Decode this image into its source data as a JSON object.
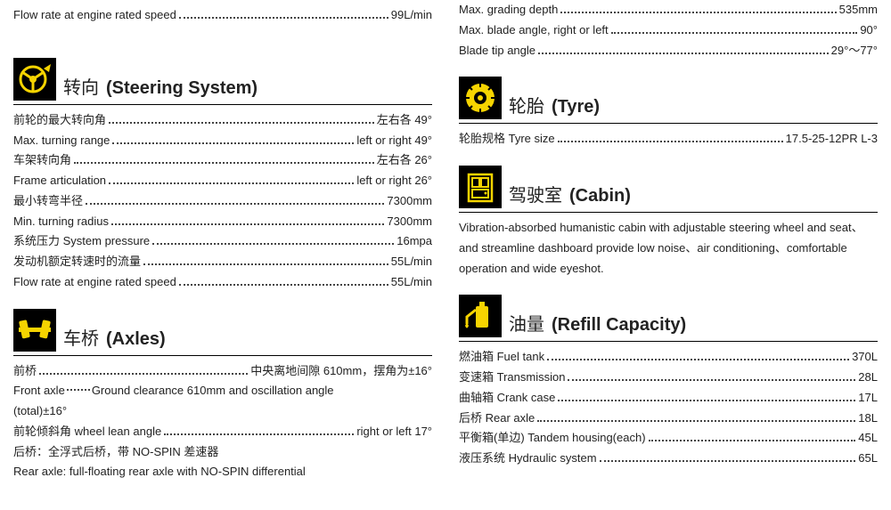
{
  "colors": {
    "icon_bg": "#000000",
    "icon_fg": "#f6d400",
    "text": "#222222",
    "rule": "#000000"
  },
  "left": {
    "top_row": {
      "label": "Flow rate at engine rated speed",
      "value": "99L/min"
    },
    "steering": {
      "title_cn": "转向",
      "title_en": "(Steering System)",
      "rows": [
        {
          "label": "前轮的最大转向角",
          "value": "左右各  49°"
        },
        {
          "label": "Max. turning range",
          "value": "left or right 49°"
        },
        {
          "label": "车架转向角",
          "value": "左右各 26°"
        },
        {
          "label": "Frame articulation",
          "value": "left or right 26°"
        },
        {
          "label": "最小转弯半径",
          "value": "7300mm"
        },
        {
          "label": "Min. turning radius",
          "value": "7300mm"
        },
        {
          "label": "系统压力  System pressure",
          "value": "16mpa"
        },
        {
          "label": "发动机额定转速时的流量",
          "value": "55L/min"
        },
        {
          "label": "Flow rate at engine rated speed",
          "value": "55L/min"
        }
      ]
    },
    "axles": {
      "title_cn": "车桥",
      "title_en": "(Axles)",
      "rows": [
        {
          "label": "前桥",
          "value": "中央离地间隙 610mm，摆角为±16°"
        }
      ],
      "front_axle_line": {
        "a": "Front axle",
        "b": "Ground clearance 610mm and oscillation angle"
      },
      "front_axle_line2": "(total)±16°",
      "lean_row": {
        "label": "前轮倾斜角  wheel lean angle",
        "value": "right or left 17°"
      },
      "rear_cn": "后桥：全浮式后桥，带 NO-SPIN 差速器",
      "rear_en": "Rear axle: full-floating rear axle with NO-SPIN differential"
    }
  },
  "right": {
    "top_rows": [
      {
        "label": "Max. grading depth",
        "value": "535mm"
      },
      {
        "label": "Max. blade angle, right or left",
        "value": "90°"
      },
      {
        "label": "Blade tip angle",
        "value": "29°～77°"
      }
    ],
    "tyre": {
      "title_cn": "轮胎",
      "title_en": "(Tyre)",
      "rows": [
        {
          "label": "轮胎规格  Tyre size",
          "value": "17.5-25-12PR  L-3"
        }
      ]
    },
    "cabin": {
      "title_cn": "驾驶室",
      "title_en": "(Cabin)",
      "para": "Vibration-absorbed humanistic cabin with adjustable steering wheel and seat、and streamline dashboard provide low noise、air conditioning、comfortable operation and wide eyeshot."
    },
    "refill": {
      "title_cn": "油量",
      "title_en": "(Refill Capacity)",
      "rows": [
        {
          "label": "燃油箱  Fuel tank",
          "value": "370L"
        },
        {
          "label": "变速箱  Transmission",
          "value": "28L"
        },
        {
          "label": "曲轴箱  Crank case",
          "value": " 17L"
        },
        {
          "label": "后桥  Rear axle",
          "value": "18L"
        },
        {
          "label": "平衡箱(单边)  Tandem housing(each)",
          "value": "45L"
        },
        {
          "label": "液压系统  Hydraulic system",
          "value": "65L"
        }
      ]
    }
  }
}
